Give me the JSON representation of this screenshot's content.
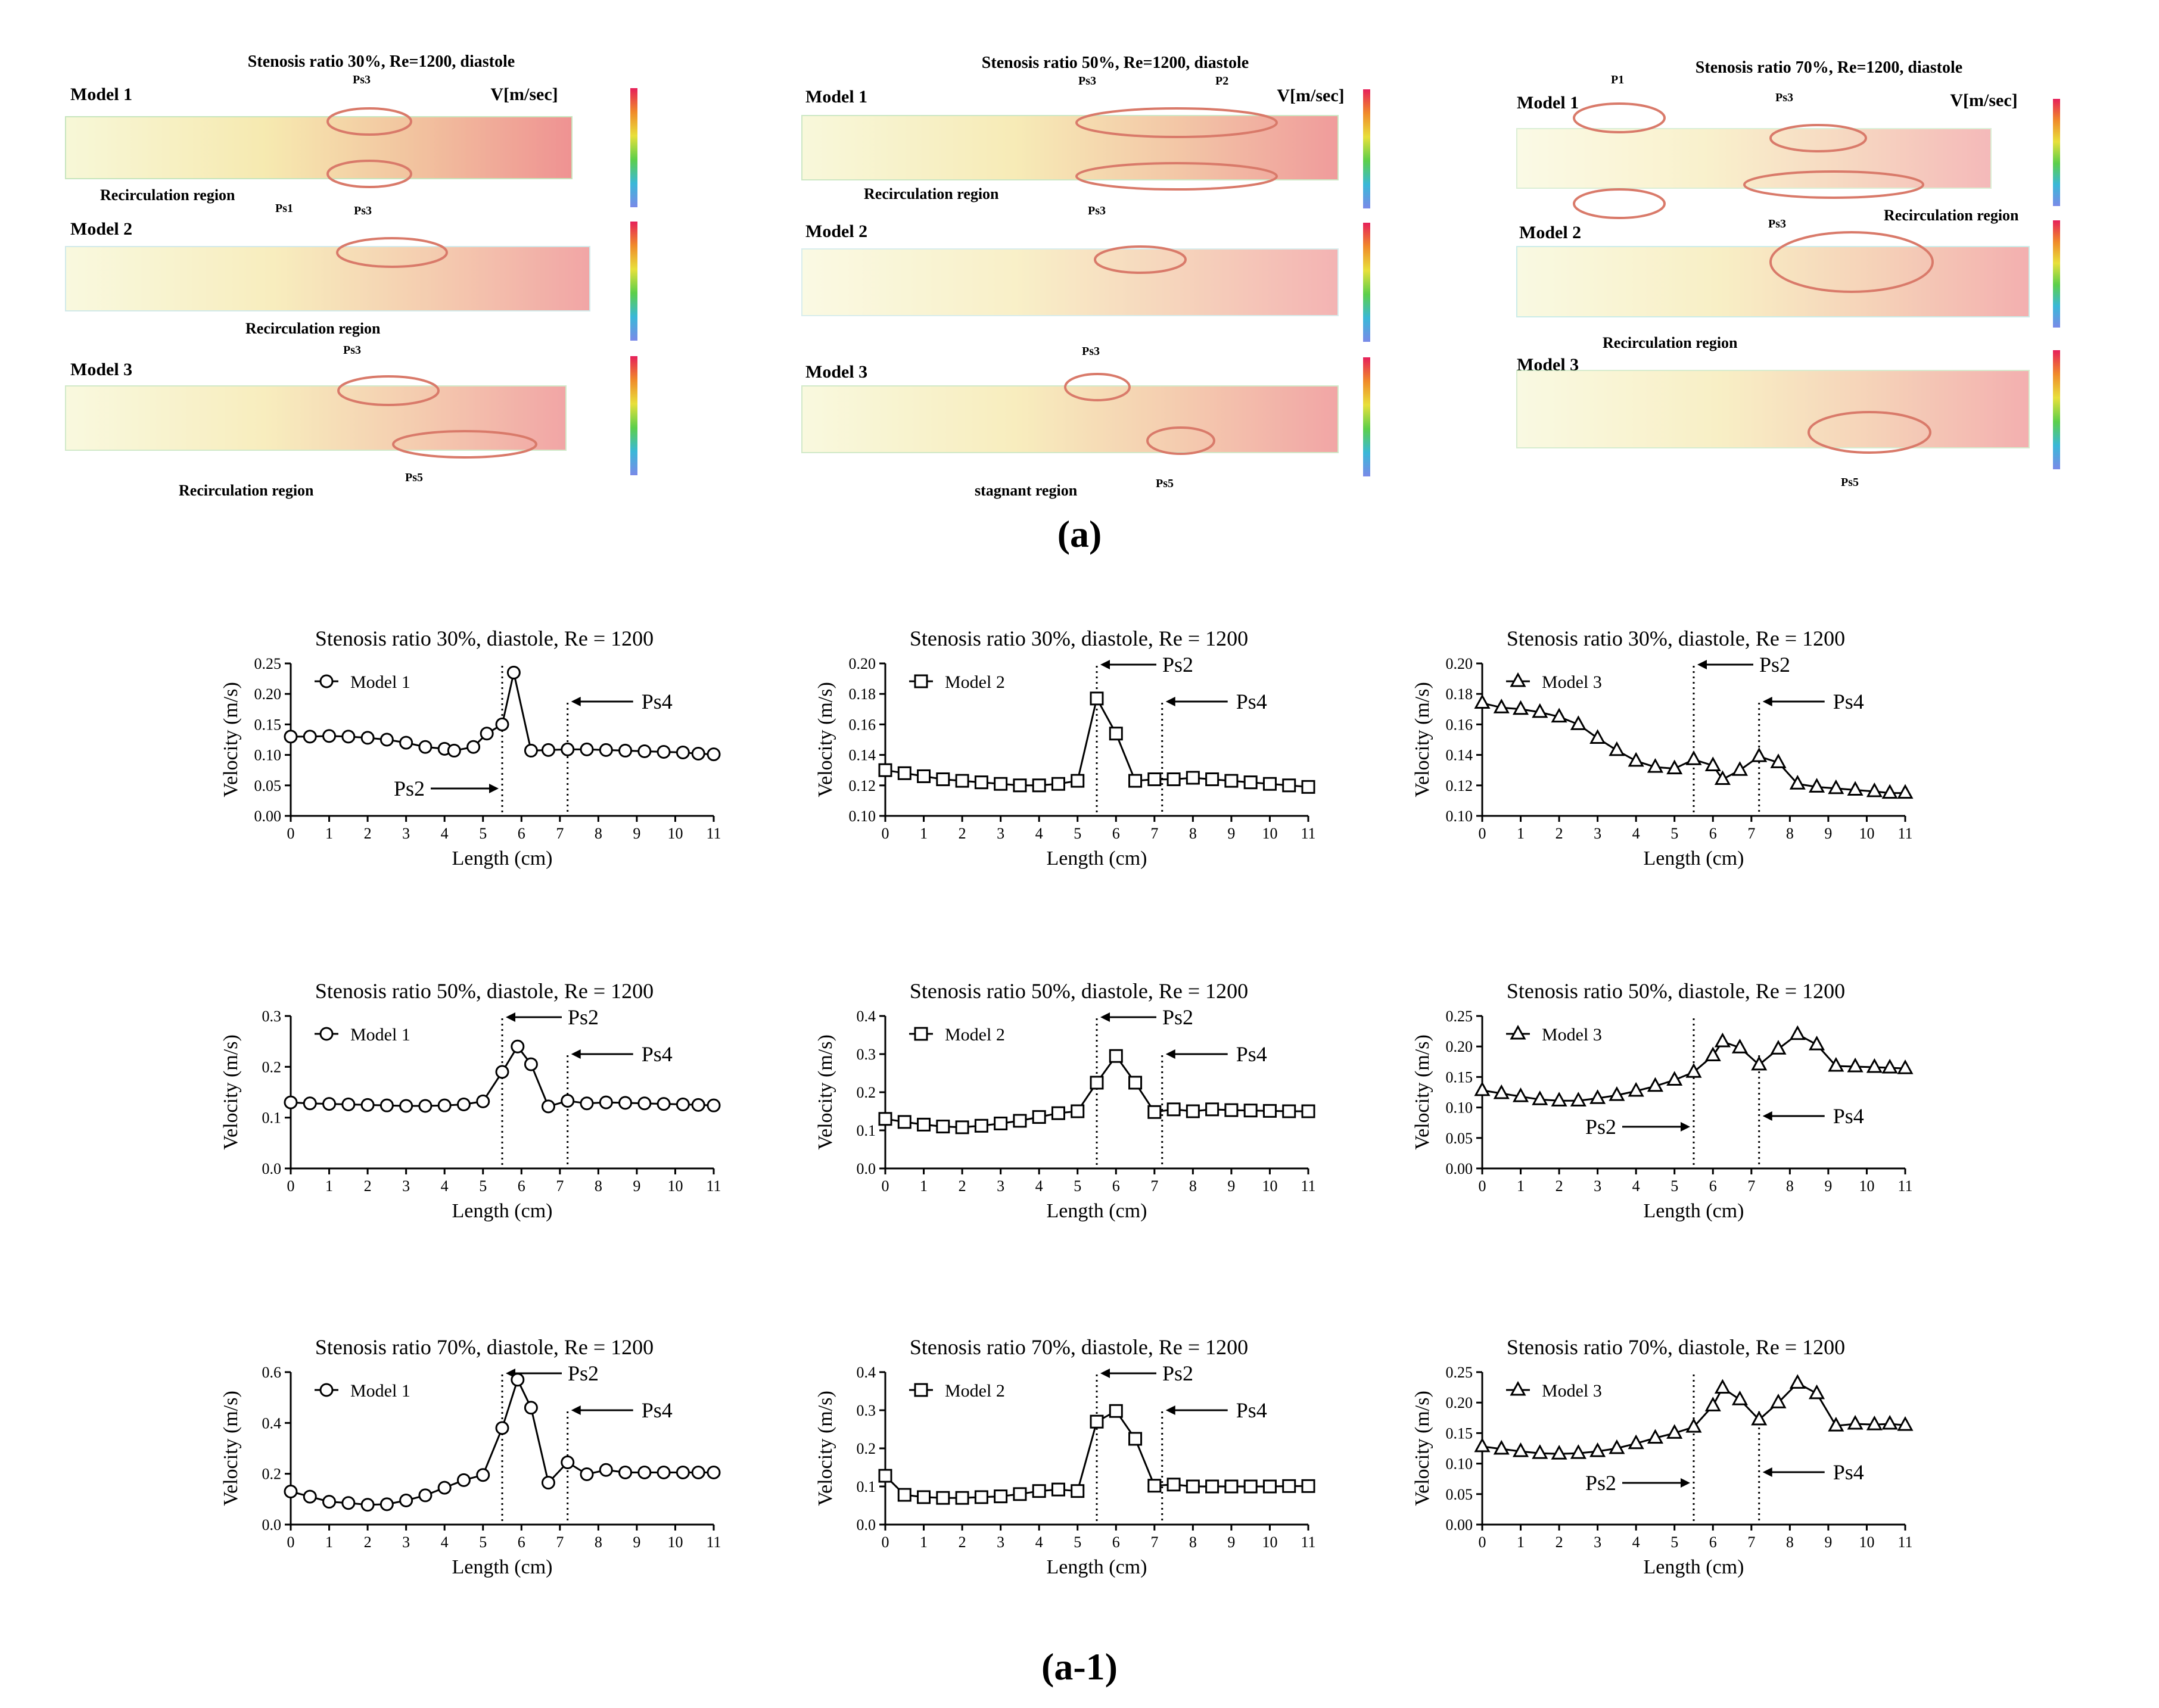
{
  "figure_labels": {
    "a": "(a)",
    "a1": "(a-1)"
  },
  "top_panels": [
    {
      "title": "Stenosis ratio 30%, Re=1200, diastole",
      "legend_title": "V[m/sec]",
      "rows": [
        {
          "model": "Model 1",
          "annotations": [
            "Ps3",
            "Ps1",
            "Recirculation region"
          ]
        },
        {
          "model": "Model 2",
          "annotations": [
            "Ps3",
            "Recirculation region"
          ]
        },
        {
          "model": "Model 3",
          "annotations": [
            "Ps3",
            "Ps5",
            "Recirculation region"
          ]
        }
      ]
    },
    {
      "title": "Stenosis ratio 50%, Re=1200, diastole",
      "legend_title": "V[m/sec]",
      "rows": [
        {
          "model": "Model 1",
          "annotations": [
            "Ps3",
            "P2",
            "Recirculation region"
          ]
        },
        {
          "model": "Model 2",
          "annotations": [
            "Ps3"
          ]
        },
        {
          "model": "Model 3",
          "annotations": [
            "Ps3",
            "Ps5",
            "stagnant region"
          ]
        }
      ]
    },
    {
      "title": "Stenosis ratio 70%, Re=1200, diastole",
      "legend_title": "V[m/sec]",
      "rows": [
        {
          "model": "Model 1",
          "annotations": [
            "P1",
            "Ps3",
            "Recirculation region"
          ]
        },
        {
          "model": "Model 2",
          "annotations": [
            "Ps3",
            "Recirculation region"
          ]
        },
        {
          "model": "Model 3",
          "annotations": [
            "Ps5"
          ]
        }
      ]
    }
  ],
  "colors": {
    "line": "#000000",
    "flow_warm": "#e23a3a",
    "flow_mid": "#e8c84a",
    "flow_cool": "#7fd0c8",
    "ellipse": "#d97a6a"
  },
  "chart_data": [
    {
      "type": "line",
      "title": "Stenosis ratio 30%, diastole,  Re = 1200",
      "xlabel": "Length (cm)",
      "ylabel": "Velocity (m/s)",
      "marker": "circle",
      "series_name": "Model 1",
      "xlim": [
        0,
        11
      ],
      "ylim": [
        0,
        0.25
      ],
      "yticks": [
        "0.00",
        "0.05",
        "0.10",
        "0.15",
        "0.20",
        "0.25"
      ],
      "x_ps2": 5.5,
      "x_ps4": 7.2,
      "ps_labels": [
        "Ps2",
        "Ps4"
      ],
      "x": [
        0,
        0.5,
        1,
        1.5,
        2,
        2.5,
        3,
        3.5,
        4,
        4.25,
        4.75,
        5.1,
        5.5,
        5.8,
        6.25,
        6.7,
        7.2,
        7.7,
        8.2,
        8.7,
        9.2,
        9.7,
        10.2,
        10.6,
        11
      ],
      "values": [
        0.13,
        0.13,
        0.131,
        0.13,
        0.128,
        0.125,
        0.12,
        0.113,
        0.11,
        0.107,
        0.113,
        0.135,
        0.15,
        0.235,
        0.107,
        0.108,
        0.109,
        0.109,
        0.108,
        0.107,
        0.106,
        0.105,
        0.104,
        0.102,
        0.101
      ]
    },
    {
      "type": "line",
      "title": "Stenosis ratio 30%, diastole,  Re = 1200",
      "xlabel": "Length (cm)",
      "ylabel": "Velocity (m/s)",
      "marker": "square",
      "series_name": "Model 2",
      "xlim": [
        0,
        11
      ],
      "ylim": [
        0.1,
        0.2
      ],
      "yticks": [
        "0.10",
        "0.12",
        "0.14",
        "0.16",
        "0.18",
        "0.20"
      ],
      "x_ps2": 5.5,
      "x_ps4": 7.2,
      "ps_labels": [
        "Ps2",
        "Ps4"
      ],
      "x": [
        0,
        0.5,
        1,
        1.5,
        2,
        2.5,
        3,
        3.5,
        4,
        4.5,
        5,
        5.5,
        6,
        6.5,
        7,
        7.5,
        8,
        8.5,
        9,
        9.5,
        10,
        10.5,
        11
      ],
      "values": [
        0.13,
        0.128,
        0.126,
        0.124,
        0.123,
        0.122,
        0.121,
        0.12,
        0.12,
        0.121,
        0.123,
        0.177,
        0.154,
        0.123,
        0.124,
        0.124,
        0.125,
        0.124,
        0.123,
        0.122,
        0.121,
        0.12,
        0.119
      ]
    },
    {
      "type": "line",
      "title": "Stenosis ratio 30%, diastole,  Re = 1200",
      "xlabel": "Length (cm)",
      "ylabel": "Velocity (m/s)",
      "marker": "triangle",
      "series_name": "Model 3",
      "xlim": [
        0,
        11
      ],
      "ylim": [
        0.1,
        0.2
      ],
      "yticks": [
        "0.10",
        "0.12",
        "0.14",
        "0.16",
        "0.18",
        "0.20"
      ],
      "x_ps2": 5.5,
      "x_ps4": 7.2,
      "ps_labels": [
        "Ps2",
        "Ps4"
      ],
      "x": [
        0,
        0.5,
        1,
        1.5,
        2,
        2.5,
        3,
        3.5,
        4,
        4.5,
        5,
        5.5,
        6,
        6.25,
        6.7,
        7.2,
        7.7,
        8.2,
        8.7,
        9.2,
        9.7,
        10.2,
        10.6,
        11
      ],
      "values": [
        0.174,
        0.171,
        0.17,
        0.168,
        0.165,
        0.16,
        0.151,
        0.143,
        0.136,
        0.132,
        0.131,
        0.137,
        0.133,
        0.124,
        0.13,
        0.139,
        0.135,
        0.121,
        0.119,
        0.118,
        0.117,
        0.116,
        0.115,
        0.115
      ]
    },
    {
      "type": "line",
      "title": "Stenosis ratio 50%, diastole,  Re = 1200",
      "xlabel": "Length (cm)",
      "ylabel": "Velocity (m/s)",
      "marker": "circle",
      "series_name": "Model 1",
      "xlim": [
        0,
        11
      ],
      "ylim": [
        0,
        0.3
      ],
      "yticks": [
        "0.0",
        "0.1",
        "0.2",
        "0.3"
      ],
      "x_ps2": 5.5,
      "x_ps4": 7.2,
      "ps_labels": [
        "Ps2",
        "Ps4"
      ],
      "x": [
        0,
        0.5,
        1,
        1.5,
        2,
        2.5,
        3,
        3.5,
        4,
        4.5,
        5,
        5.5,
        5.9,
        6.25,
        6.7,
        7.2,
        7.7,
        8.2,
        8.7,
        9.2,
        9.7,
        10.2,
        10.6,
        11
      ],
      "values": [
        0.13,
        0.128,
        0.127,
        0.126,
        0.125,
        0.124,
        0.123,
        0.123,
        0.124,
        0.126,
        0.132,
        0.19,
        0.24,
        0.205,
        0.122,
        0.133,
        0.128,
        0.13,
        0.129,
        0.128,
        0.127,
        0.126,
        0.125,
        0.124
      ]
    },
    {
      "type": "line",
      "title": "Stenosis ratio 50%, diastole,  Re = 1200",
      "xlabel": "Length (cm)",
      "ylabel": "Velocity (m/s)",
      "marker": "square",
      "series_name": "Model 2",
      "xlim": [
        0,
        11
      ],
      "ylim": [
        0,
        0.4
      ],
      "yticks": [
        "0.0",
        "0.1",
        "0.2",
        "0.3",
        "0.4"
      ],
      "x_ps2": 5.5,
      "x_ps4": 7.2,
      "ps_labels": [
        "Ps2",
        "Ps4"
      ],
      "x": [
        0,
        0.5,
        1,
        1.5,
        2,
        2.5,
        3,
        3.5,
        4,
        4.5,
        5,
        5.5,
        6,
        6.5,
        7,
        7.5,
        8,
        8.5,
        9,
        9.5,
        10,
        10.5,
        11
      ],
      "values": [
        0.13,
        0.122,
        0.115,
        0.11,
        0.108,
        0.112,
        0.118,
        0.125,
        0.135,
        0.145,
        0.15,
        0.225,
        0.295,
        0.225,
        0.148,
        0.155,
        0.15,
        0.155,
        0.153,
        0.152,
        0.151,
        0.15,
        0.15
      ]
    },
    {
      "type": "line",
      "title": "Stenosis ratio 50%, diastole,  Re = 1200",
      "xlabel": "Length (cm)",
      "ylabel": "Velocity (m/s)",
      "marker": "triangle",
      "series_name": "Model 3",
      "xlim": [
        0,
        11
      ],
      "ylim": [
        0,
        0.25
      ],
      "yticks": [
        "0.00",
        "0.05",
        "0.10",
        "0.15",
        "0.20",
        "0.25"
      ],
      "x_ps2": 5.5,
      "x_ps4": 7.2,
      "ps_labels": [
        "Ps2",
        "Ps4"
      ],
      "x": [
        0,
        0.5,
        1,
        1.5,
        2,
        2.5,
        3,
        3.5,
        4,
        4.5,
        5,
        5.5,
        6,
        6.25,
        6.7,
        7.2,
        7.7,
        8.2,
        8.7,
        9.2,
        9.7,
        10.2,
        10.6,
        11
      ],
      "values": [
        0.128,
        0.123,
        0.118,
        0.113,
        0.111,
        0.111,
        0.115,
        0.12,
        0.127,
        0.135,
        0.145,
        0.158,
        0.185,
        0.208,
        0.198,
        0.17,
        0.196,
        0.22,
        0.203,
        0.168,
        0.167,
        0.166,
        0.165,
        0.164
      ]
    },
    {
      "type": "line",
      "title": "Stenosis ratio 70%, diastole,  Re = 1200",
      "xlabel": "Length (cm)",
      "ylabel": "Velocity (m/s)",
      "marker": "circle",
      "series_name": "Model 1",
      "xlim": [
        0,
        11
      ],
      "ylim": [
        0,
        0.6
      ],
      "yticks": [
        "0.0",
        "0.2",
        "0.4",
        "0.6"
      ],
      "x_ps2": 5.5,
      "x_ps4": 7.2,
      "ps_labels": [
        "Ps2",
        "Ps4"
      ],
      "x": [
        0,
        0.5,
        1,
        1.5,
        2,
        2.5,
        3,
        3.5,
        4,
        4.5,
        5,
        5.5,
        5.9,
        6.25,
        6.7,
        7.2,
        7.7,
        8.2,
        8.7,
        9.2,
        9.7,
        10.2,
        10.6,
        11
      ],
      "values": [
        0.13,
        0.11,
        0.09,
        0.085,
        0.078,
        0.08,
        0.095,
        0.115,
        0.145,
        0.175,
        0.195,
        0.38,
        0.57,
        0.46,
        0.165,
        0.245,
        0.198,
        0.215,
        0.205,
        0.205,
        0.205,
        0.205,
        0.205,
        0.205
      ]
    },
    {
      "type": "line",
      "title": "Stenosis ratio 70%, diastole,  Re = 1200",
      "xlabel": "Length (cm)",
      "ylabel": "Velocity (m/s)",
      "marker": "square",
      "series_name": "Model 2",
      "xlim": [
        0,
        11
      ],
      "ylim": [
        0,
        0.4
      ],
      "yticks": [
        "0.0",
        "0.1",
        "0.2",
        "0.3",
        "0.4"
      ],
      "x_ps2": 5.5,
      "x_ps4": 7.2,
      "ps_labels": [
        "Ps2",
        "Ps4"
      ],
      "x": [
        0,
        0.5,
        1,
        1.5,
        2,
        2.5,
        3,
        3.5,
        4,
        4.5,
        5,
        5.5,
        6,
        6.5,
        7,
        7.5,
        8,
        8.5,
        9,
        9.5,
        10,
        10.5,
        11
      ],
      "values": [
        0.128,
        0.078,
        0.072,
        0.07,
        0.07,
        0.072,
        0.074,
        0.08,
        0.088,
        0.092,
        0.088,
        0.27,
        0.298,
        0.225,
        0.102,
        0.105,
        0.1,
        0.1,
        0.1,
        0.1,
        0.1,
        0.101,
        0.101
      ]
    },
    {
      "type": "line",
      "title": "Stenosis ratio 70%, diastole,  Re = 1200",
      "xlabel": "Length (cm)",
      "ylabel": "Velocity (m/s)",
      "marker": "triangle",
      "series_name": "Model 3",
      "xlim": [
        0,
        11
      ],
      "ylim": [
        0,
        0.25
      ],
      "yticks": [
        "0.00",
        "0.05",
        "0.10",
        "0.15",
        "0.20",
        "0.25"
      ],
      "x_ps2": 5.5,
      "x_ps4": 7.2,
      "ps_labels": [
        "Ps2",
        "Ps4"
      ],
      "x": [
        0,
        0.5,
        1,
        1.5,
        2,
        2.5,
        3,
        3.5,
        4,
        4.5,
        5,
        5.5,
        6,
        6.25,
        6.7,
        7.2,
        7.7,
        8.2,
        8.7,
        9.2,
        9.7,
        10.2,
        10.6,
        11
      ],
      "values": [
        0.128,
        0.124,
        0.12,
        0.117,
        0.116,
        0.117,
        0.12,
        0.125,
        0.133,
        0.142,
        0.15,
        0.16,
        0.195,
        0.224,
        0.205,
        0.172,
        0.2,
        0.232,
        0.215,
        0.162,
        0.165,
        0.164,
        0.165,
        0.163
      ]
    }
  ]
}
